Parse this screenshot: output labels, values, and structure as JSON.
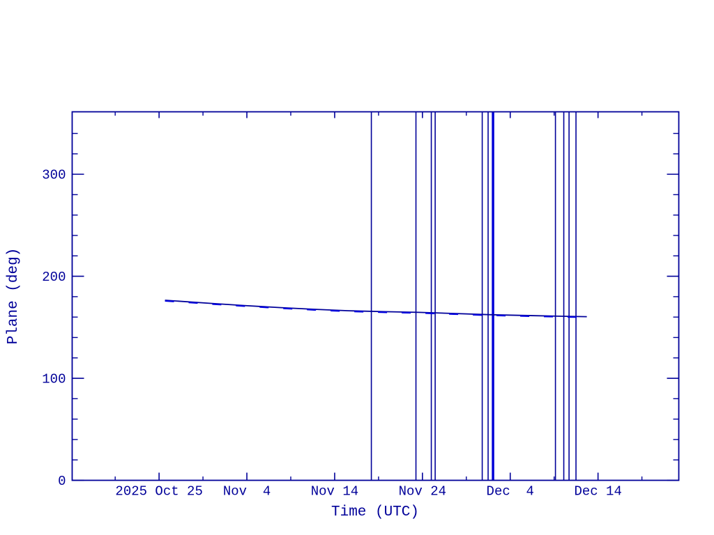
{
  "chart_data": {
    "type": "line",
    "title": "",
    "xlabel": "Time (UTC)",
    "ylabel": "Plane (deg)",
    "x_unit": "days since 2025 Oct 25 00:00 UTC",
    "xlim": [
      -9.9,
      59.2
    ],
    "ylim": [
      0,
      361.2
    ],
    "grid": false,
    "legend": "none",
    "x_major_ticks": [
      {
        "day": 0,
        "label": "2025 Oct 25"
      },
      {
        "day": 10,
        "label": "Nov  4"
      },
      {
        "day": 20,
        "label": "Nov 14"
      },
      {
        "day": 30,
        "label": "Nov 24"
      },
      {
        "day": 40,
        "label": "Dec  4"
      },
      {
        "day": 50,
        "label": "Dec 14"
      }
    ],
    "x_minor_ticks": [
      -5,
      5,
      15,
      25,
      35,
      45,
      55
    ],
    "y_major_ticks": [
      {
        "deg": 0,
        "label": "0"
      },
      {
        "deg": 100,
        "label": "100"
      },
      {
        "deg": 200,
        "label": "200"
      },
      {
        "deg": 300,
        "label": "300"
      }
    ],
    "y_minor_step": 20,
    "series": [
      {
        "name": "plane-angle",
        "color": "#000099",
        "points": [
          [
            0.67,
            176.5
          ],
          [
            5.75,
            173.5
          ],
          [
            9.72,
            171.3
          ],
          [
            13.7,
            169.3
          ],
          [
            17.67,
            167.6
          ],
          [
            21.64,
            166.2
          ],
          [
            25.61,
            165.3
          ],
          [
            29.58,
            164.6
          ],
          [
            33.55,
            163.5
          ],
          [
            37.52,
            162.4
          ],
          [
            41.49,
            161.6
          ],
          [
            45.47,
            160.9
          ],
          [
            48.72,
            160.4
          ]
        ]
      },
      {
        "name": "plane-angle-overlay",
        "color": "#0000e0",
        "dash": "13 21",
        "points": [
          [
            0.67,
            176.5
          ],
          [
            5.75,
            173.5
          ],
          [
            9.72,
            171.3
          ],
          [
            13.7,
            169.3
          ],
          [
            17.67,
            167.6
          ],
          [
            21.64,
            166.2
          ],
          [
            25.61,
            165.3
          ],
          [
            29.58,
            164.6
          ],
          [
            33.55,
            163.5
          ],
          [
            37.52,
            162.4
          ],
          [
            41.49,
            161.6
          ],
          [
            45.47,
            160.9
          ],
          [
            48.72,
            160.4
          ]
        ]
      }
    ],
    "vertical_event_lines": {
      "color": "#000099",
      "thick_color": "#0000d8",
      "events": [
        {
          "day": 24.18,
          "thick": false
        },
        {
          "day": 29.26,
          "thick": false
        },
        {
          "day": 31.01,
          "thick": false
        },
        {
          "day": 31.45,
          "thick": false
        },
        {
          "day": 36.81,
          "thick": false
        },
        {
          "day": 37.48,
          "thick": false
        },
        {
          "day": 38.04,
          "thick": true
        },
        {
          "day": 45.15,
          "thick": false
        },
        {
          "day": 46.1,
          "thick": false
        },
        {
          "day": 46.7,
          "thick": false
        },
        {
          "day": 47.49,
          "thick": false
        }
      ]
    },
    "colors": {
      "axis": "#000099",
      "text": "#000099",
      "background": "#ffffff"
    }
  }
}
